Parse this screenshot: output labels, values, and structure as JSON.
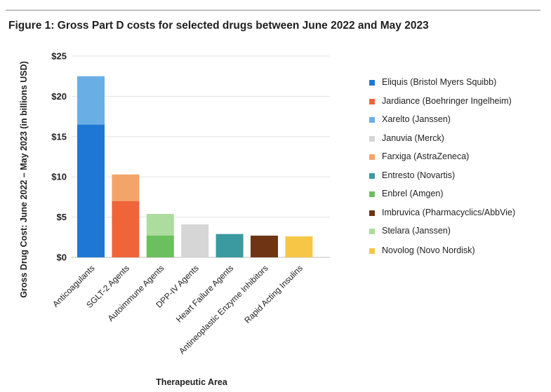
{
  "figure": {
    "title": "Figure 1: Gross Part D costs for selected drugs between June 2022 and May 2023"
  },
  "chart_data": {
    "type": "bar",
    "stacked": true,
    "title": "Figure 1: Gross Part D costs for selected drugs between June 2022 and May 2023",
    "xlabel": "Therapeutic Area",
    "ylabel": "Gross Drug Cost: June 2022  –  May 2023 (in billions USD)",
    "ylim": [
      0,
      25
    ],
    "yticks": [
      "$0",
      "$5",
      "$10",
      "$15",
      "$20",
      "$25"
    ],
    "ytick_values": [
      0,
      5,
      10,
      15,
      20,
      25
    ],
    "grid": true,
    "legend_position": "right",
    "categories": [
      "Anticoagulants",
      "SGLT-2 Agents",
      "Autoimmune Agents",
      "DPP-IV Agents",
      "Heart Failure Agents",
      "Antineoplastic Enzyme Inhibitors",
      "Rapid Acting Insulins"
    ],
    "series": [
      {
        "name": "Eliquis (Bristol Myers Squibb)",
        "color": "#1f77d4",
        "values": [
          16.5,
          0,
          0,
          0,
          0,
          0,
          0
        ]
      },
      {
        "name": "Jardiance (Boehringer Ingelheim)",
        "color": "#f0643a",
        "values": [
          0,
          7.0,
          0,
          0,
          0,
          0,
          0
        ]
      },
      {
        "name": "Xarelto (Janssen)",
        "color": "#6aaee6",
        "values": [
          6.0,
          0,
          0,
          0,
          0,
          0,
          0
        ]
      },
      {
        "name": "Januvia (Merck)",
        "color": "#d6d6d6",
        "values": [
          0,
          0,
          0,
          4.1,
          0,
          0,
          0
        ]
      },
      {
        "name": "Farxiga (AstraZeneca)",
        "color": "#f3a468",
        "values": [
          0,
          3.3,
          0,
          0,
          0,
          0,
          0
        ]
      },
      {
        "name": "Entresto (Novartis)",
        "color": "#3a9a9f",
        "values": [
          0,
          0,
          0,
          0,
          2.9,
          0,
          0
        ]
      },
      {
        "name": "Enbrel (Amgen)",
        "color": "#6cbf5f",
        "values": [
          0,
          0,
          2.7,
          0,
          0,
          0,
          0
        ]
      },
      {
        "name": "Imbruvica (Pharmacyclics/AbbVie)",
        "color": "#6e3514",
        "values": [
          0,
          0,
          0,
          0,
          0,
          2.7,
          0
        ]
      },
      {
        "name": "Stelara (Janssen)",
        "color": "#acdc9e",
        "values": [
          0,
          0,
          2.7,
          0,
          0,
          0,
          0
        ]
      },
      {
        "name": "Novolog (Novo Nordisk)",
        "color": "#f6c646",
        "values": [
          0,
          0,
          0,
          0,
          0,
          0,
          2.6
        ]
      }
    ]
  }
}
